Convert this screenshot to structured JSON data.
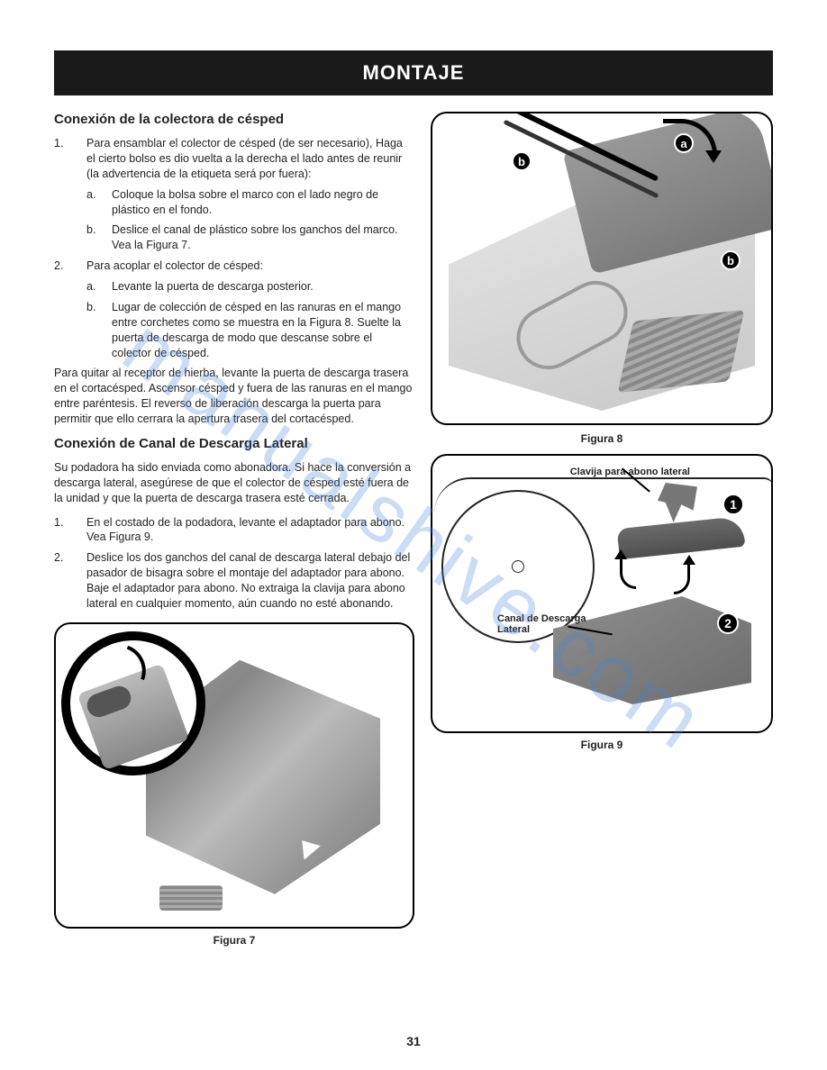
{
  "header": {
    "title": "MONTAJE"
  },
  "section1": {
    "heading": "Conexión de la colectora de césped",
    "item1": "Para ensamblar el colector de césped (de ser necesario), Haga el cierto bolso es dio vuelta a la derecha el lado antes de reunir (la advertencia de la etiqueta será por fuera):",
    "item1a": "Coloque la bolsa sobre el marco con el lado negro de plástico en el fondo.",
    "item1b": "Deslice el canal de plástico sobre los ganchos del marco. Vea la Figura 7.",
    "item2": "Para acoplar el colector de césped:",
    "item2a": "Levante la puerta de descarga posterior.",
    "item2b": "Lugar de colección de césped en las ranuras en el mango entre corchetes como se muestra en la Figura 8. Suelte la puerta de descarga de modo que descanse sobre el colector de césped.",
    "closing": "Para quitar al receptor de hierba, levante la puerta de descarga trasera en el cortacésped. Ascensor césped y fuera de las ranuras en el mango entre paréntesis. El reverso de liberación descarga la puerta para permitir que ello cerrara la apertura trasera del cortacésped."
  },
  "section2": {
    "heading": "Conexión de Canal de Descarga Lateral",
    "intro": "Su podadora ha sido enviada como abonadora. Si hace la conversión a descarga lateral, asegúrese de que el colector de césped esté fuera de la unidad y que la puerta de descarga trasera esté cerrada.",
    "item1": "En el costado de la podadora, levante el adaptador para abono. Vea Figura 9.",
    "item2": "Deslice los dos ganchos del canal de descarga lateral debajo del pasador de bisagra sobre el montaje del adaptador para abono. Baje el adaptador para abono. No extraiga la clavija para abono lateral en cualquier momento, aún cuando no esté abonando."
  },
  "figures": {
    "fig7_caption": "Figura 7",
    "fig8_caption": "Figura 8",
    "fig8_badge_a": "a",
    "fig8_badge_b": "b",
    "fig9_caption": "Figura 9",
    "fig9_label1": "Clavija para abono lateral",
    "fig9_label2": "Canal de Descarga Lateral",
    "fig9_n1": "1",
    "fig9_n2": "2"
  },
  "watermark": "manualshive.com",
  "page_number": "31",
  "list_markers": {
    "n1": "1.",
    "n2": "2.",
    "a": "a.",
    "b": "b."
  }
}
